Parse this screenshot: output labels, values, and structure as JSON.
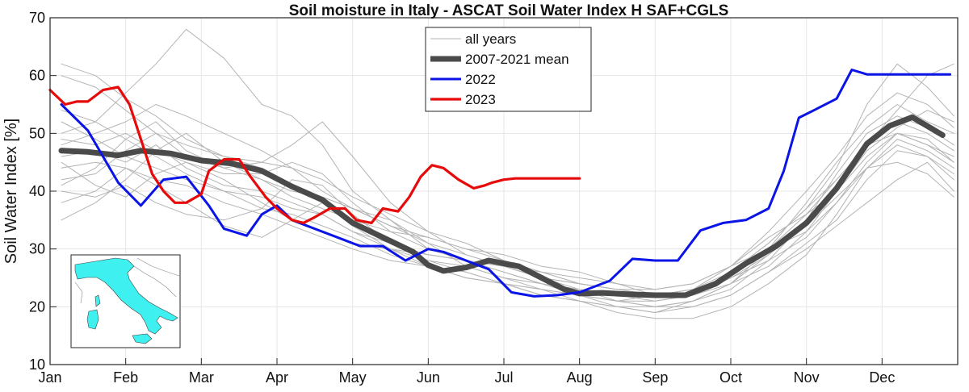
{
  "chart_data": {
    "type": "line",
    "title": "Soil moisture in Italy - ASCAT Soil Water Index H SAF+CGLS",
    "xlabel": "",
    "ylabel": "Soil Water Index [%]",
    "ylim": [
      10,
      70
    ],
    "yticks": [
      10,
      20,
      30,
      40,
      50,
      60,
      70
    ],
    "xlim": [
      0,
      12
    ],
    "month_labels": [
      "Jan",
      "Feb",
      "Mar",
      "Apr",
      "May",
      "Jun",
      "Jul",
      "Aug",
      "Sep",
      "Oct",
      "Nov",
      "Dec"
    ],
    "grid": true,
    "legend_position": "top-center",
    "legend": [
      "all years",
      "2007-2021 mean",
      "2022",
      "2023"
    ],
    "colors": {
      "all_years": "#b4b4b4",
      "mean": "#4a4a4a",
      "y2022": "#0a14e6",
      "y2023": "#e60a0a",
      "map_land": "#3ff0f0"
    },
    "inset_map": "italy-location-map",
    "series": [
      {
        "name": "2007-2021 mean",
        "x": [
          0.15,
          0.5,
          0.9,
          1.2,
          1.6,
          2.0,
          2.4,
          2.8,
          3.2,
          3.6,
          4.0,
          4.4,
          4.8,
          5.0,
          5.2,
          5.5,
          5.8,
          6.2,
          6.5,
          6.8,
          7.0,
          7.3,
          7.6,
          8.0,
          8.4,
          8.8,
          9.2,
          9.6,
          10.0,
          10.4,
          10.8,
          11.1,
          11.4,
          11.8
        ],
        "y": [
          47,
          46.8,
          46.2,
          47,
          46.5,
          45.3,
          44.8,
          43.5,
          40.8,
          38.5,
          34.5,
          32,
          29.5,
          27.2,
          26.2,
          26.8,
          28,
          27,
          25,
          23,
          22.3,
          22.4,
          22.2,
          22,
          22,
          24,
          27.5,
          30.5,
          34.5,
          40.5,
          48.2,
          51.3,
          52.8,
          49.7
        ]
      },
      {
        "name": "2022",
        "x": [
          0.15,
          0.5,
          0.9,
          1.2,
          1.5,
          1.8,
          2.1,
          2.3,
          2.6,
          2.8,
          3.0,
          3.2,
          3.5,
          3.8,
          4.1,
          4.4,
          4.7,
          5.0,
          5.2,
          5.4,
          5.6,
          5.8,
          6.1,
          6.4,
          6.7,
          7.0,
          7.4,
          7.7,
          8.0,
          8.3,
          8.6,
          8.9,
          9.2,
          9.5,
          9.7,
          9.9,
          10.1,
          10.4,
          10.6,
          10.8,
          11.0,
          11.4,
          11.6,
          11.9
        ],
        "y": [
          55,
          50.5,
          41.5,
          37.5,
          42,
          42.5,
          37.5,
          33.5,
          32.3,
          36,
          37.5,
          35,
          33.5,
          32,
          30.5,
          30.5,
          28,
          30,
          29.5,
          28.5,
          27.5,
          26.5,
          22.5,
          21.8,
          22,
          22.5,
          24.5,
          28.3,
          28,
          28,
          33.2,
          34.5,
          35,
          37,
          43.5,
          52.7,
          54,
          56,
          61,
          60.2,
          60.2,
          60.2,
          60.2,
          60.2
        ]
      },
      {
        "name": "2023",
        "x": [
          0.0,
          0.2,
          0.35,
          0.5,
          0.7,
          0.9,
          1.05,
          1.2,
          1.35,
          1.5,
          1.65,
          1.8,
          2.0,
          2.1,
          2.3,
          2.5,
          2.65,
          2.85,
          3.0,
          3.2,
          3.35,
          3.5,
          3.7,
          3.9,
          4.05,
          4.25,
          4.4,
          4.6,
          4.75,
          4.9,
          5.05,
          5.2,
          5.4,
          5.6,
          5.75,
          5.85,
          6.0,
          6.15,
          6.3,
          6.45,
          6.6,
          6.7,
          6.85,
          7.0
        ],
        "y": [
          57.5,
          55,
          55.5,
          55.5,
          57.5,
          58,
          55,
          49,
          43,
          40,
          38,
          38,
          39.5,
          43.5,
          45.5,
          45.5,
          42.5,
          39,
          37,
          35,
          34.5,
          35.5,
          37,
          37,
          35,
          34.5,
          37,
          36.5,
          39,
          42.5,
          44.5,
          44,
          42,
          40.5,
          41,
          41.5,
          42,
          42.2,
          42.2,
          42.2,
          42.2,
          42.2,
          42.2,
          42.2
        ]
      }
    ],
    "all_years_series": [
      {
        "x": [
          0.15,
          0.6,
          1.0,
          1.4,
          1.8,
          2.3,
          2.8,
          3.2,
          3.6,
          4.0,
          4.5,
          5.0,
          5.5,
          6.0,
          6.5,
          7.0,
          7.5,
          8.0,
          8.5,
          9.0,
          9.5,
          10.0,
          10.4,
          10.8,
          11.2,
          11.6,
          11.95
        ],
        "y": [
          44,
          45,
          44,
          42,
          41,
          38,
          36,
          34,
          32,
          30,
          28,
          27,
          26,
          24,
          22,
          21,
          20,
          20,
          21,
          24,
          30,
          38,
          45,
          51,
          55,
          52,
          50
        ]
      },
      {
        "x": [
          0.15,
          0.6,
          1.0,
          1.4,
          1.8,
          2.3,
          2.8,
          3.2,
          3.6,
          4.0,
          4.5,
          5.0,
          5.5,
          6.0,
          6.5,
          7.0,
          7.5,
          8.0,
          8.5,
          9.0,
          9.5,
          10.0,
          10.4,
          10.8,
          11.2,
          11.6,
          11.95
        ],
        "y": [
          50,
          52,
          57,
          62,
          68,
          63,
          55,
          53,
          48,
          40,
          35,
          30,
          28,
          26,
          24,
          23,
          22,
          21,
          22,
          26,
          31,
          37,
          44,
          55,
          62,
          58,
          53
        ]
      },
      {
        "x": [
          0.15,
          0.6,
          1.0,
          1.4,
          1.8,
          2.3,
          2.8,
          3.2,
          3.6,
          4.0,
          4.5,
          5.0,
          5.5,
          6.0,
          6.5,
          7.0,
          7.5,
          8.0,
          8.5,
          9.0,
          9.5,
          10.0,
          10.4,
          10.8,
          11.2,
          11.6,
          11.95
        ],
        "y": [
          40,
          39,
          41,
          38,
          36,
          35,
          37,
          42,
          41,
          36,
          31,
          28,
          26,
          24,
          23,
          22,
          21,
          22,
          23,
          27,
          33,
          40,
          46,
          53,
          57,
          55,
          51
        ]
      },
      {
        "x": [
          0.15,
          0.6,
          1.0,
          1.4,
          1.8,
          2.3,
          2.8,
          3.2,
          3.6,
          4.0,
          4.5,
          5.0,
          5.5,
          6.0,
          6.5,
          7.0,
          7.5,
          8.0,
          8.5,
          9.0,
          9.5,
          10.0,
          10.4,
          10.8,
          11.2,
          11.6,
          11.95
        ],
        "y": [
          35,
          38,
          42,
          47,
          50,
          45,
          42,
          40,
          39,
          37,
          34,
          32,
          30,
          28,
          26,
          24,
          23,
          22,
          22,
          25,
          29,
          34,
          41,
          48,
          52,
          50,
          47
        ]
      },
      {
        "x": [
          0.15,
          0.6,
          1.0,
          1.4,
          1.8,
          2.3,
          2.8,
          3.2,
          3.6,
          4.0,
          4.5,
          5.0,
          5.5,
          6.0,
          6.5,
          7.0,
          7.5,
          8.0,
          8.5,
          9.0,
          9.5,
          10.0,
          10.4,
          10.8,
          11.2,
          11.6,
          11.95
        ],
        "y": [
          60,
          58,
          54,
          50,
          46,
          44,
          45,
          48,
          52,
          46,
          38,
          33,
          29,
          27,
          25,
          24,
          23,
          23,
          24,
          27,
          32,
          36,
          40,
          46,
          50,
          48,
          45
        ]
      },
      {
        "x": [
          0.15,
          0.6,
          1.0,
          1.4,
          1.8,
          2.3,
          2.8,
          3.2,
          3.6,
          4.0,
          4.5,
          5.0,
          5.5,
          6.0,
          6.5,
          7.0,
          7.5,
          8.0,
          8.5,
          9.0,
          9.5,
          10.0,
          10.4,
          10.8,
          11.2,
          11.6,
          11.95
        ],
        "y": [
          46,
          47,
          45,
          48,
          44,
          41,
          40,
          38,
          36,
          33,
          31,
          29,
          28,
          27,
          25,
          23,
          21,
          20,
          20,
          22,
          26,
          31,
          35,
          42,
          47,
          46,
          43
        ]
      },
      {
        "x": [
          0.15,
          0.6,
          1.0,
          1.4,
          1.8,
          2.3,
          2.8,
          3.2,
          3.6,
          4.0,
          4.5,
          5.0,
          5.5,
          6.0,
          6.5,
          7.0,
          7.5,
          8.0,
          8.5,
          9.0,
          9.5,
          10.0,
          10.4,
          10.8,
          11.2,
          11.6,
          11.95
        ],
        "y": [
          42,
          43,
          47,
          50,
          48,
          46,
          44,
          41,
          39,
          37,
          35,
          31,
          27,
          25,
          23,
          21,
          19,
          18,
          18,
          20,
          24,
          29,
          36,
          44,
          49,
          47,
          44
        ]
      },
      {
        "x": [
          0.15,
          0.6,
          1.0,
          1.4,
          1.8,
          2.3,
          2.8,
          3.2,
          3.6,
          4.0,
          4.5,
          5.0,
          5.5,
          6.0,
          6.5,
          7.0,
          7.5,
          8.0,
          8.5,
          9.0,
          9.5,
          10.0,
          10.4,
          10.8,
          11.2,
          11.6,
          11.95
        ],
        "y": [
          54,
          52,
          49,
          52,
          47,
          44,
          42,
          39,
          37,
          35,
          33,
          32,
          30,
          29,
          27,
          26,
          24,
          23,
          24,
          27,
          30,
          33,
          38,
          44,
          48,
          46,
          42
        ]
      },
      {
        "x": [
          0.15,
          0.6,
          1.0,
          1.4,
          1.8,
          2.3,
          2.8,
          3.2,
          3.6,
          4.0,
          4.5,
          5.0,
          5.5,
          6.0,
          6.5,
          7.0,
          7.5,
          8.0,
          8.5,
          9.0,
          9.5,
          10.0,
          10.4,
          10.8,
          11.2,
          11.6,
          11.95
        ],
        "y": [
          38,
          40,
          44,
          41,
          38,
          34,
          32,
          35,
          38,
          34,
          30,
          27,
          25,
          24,
          22,
          21,
          20,
          19,
          21,
          23,
          28,
          35,
          43,
          50,
          53,
          51,
          48
        ]
      },
      {
        "x": [
          0.15,
          0.6,
          1.0,
          1.4,
          1.8,
          2.3,
          2.8,
          3.2,
          3.6,
          4.0,
          4.5,
          5.0,
          5.5,
          6.0,
          6.5,
          7.0,
          7.5,
          8.0,
          8.5,
          9.0,
          9.5,
          10.0,
          10.4,
          10.8,
          11.2,
          11.6,
          11.95
        ],
        "y": [
          48,
          50,
          52,
          55,
          53,
          50,
          47,
          44,
          40,
          37,
          34,
          31,
          29,
          27,
          26,
          25,
          24,
          22,
          22,
          24,
          27,
          33,
          40,
          47,
          51,
          54,
          52
        ]
      },
      {
        "x": [
          0.15,
          0.6,
          1.0,
          1.4,
          1.8,
          2.3,
          2.8,
          3.2,
          3.6,
          4.0,
          4.5,
          5.0,
          5.5,
          6.0,
          6.5,
          7.0,
          7.5,
          8.0,
          8.5,
          9.0,
          9.5,
          10.0,
          10.4,
          10.8,
          11.2,
          11.6,
          11.95
        ],
        "y": [
          52,
          49,
          46,
          44,
          42,
          40,
          39,
          37,
          36,
          33,
          30,
          28,
          27,
          25,
          24,
          22,
          21,
          21,
          22,
          26,
          31,
          37,
          42,
          48,
          54,
          60,
          62
        ]
      },
      {
        "x": [
          0.15,
          0.6,
          1.0,
          1.4,
          1.8,
          2.3,
          2.8,
          3.2,
          3.6,
          4.0,
          4.5,
          5.0,
          5.5,
          6.0,
          6.5,
          7.0,
          7.5,
          8.0,
          8.5,
          9.0,
          9.5,
          10.0,
          10.4,
          10.8,
          11.2,
          11.6,
          11.95
        ],
        "y": [
          45,
          41,
          39,
          43,
          45,
          42,
          38,
          35,
          33,
          31,
          30,
          29,
          28,
          26,
          24,
          22,
          20,
          19,
          20,
          22,
          26,
          30,
          34,
          38,
          42,
          45,
          40
        ]
      },
      {
        "x": [
          0.15,
          0.6,
          1.0,
          1.4,
          1.8,
          2.3,
          2.8,
          3.2,
          3.6,
          4.0,
          4.5,
          5.0,
          5.5,
          6.0,
          6.5,
          7.0,
          7.5,
          8.0,
          8.5,
          9.0,
          9.5,
          10.0,
          10.4,
          10.8,
          11.2,
          11.6,
          11.95
        ],
        "y": [
          62,
          60,
          56,
          53,
          49,
          46,
          45,
          44,
          42,
          39,
          36,
          33,
          31,
          28,
          26,
          24,
          23,
          22,
          23,
          25,
          28,
          32,
          38,
          45,
          50,
          48,
          46
        ]
      },
      {
        "x": [
          0.15,
          0.6,
          1.0,
          1.4,
          1.8,
          2.3,
          2.8,
          3.2,
          3.6,
          4.0,
          4.5,
          5.0,
          5.5,
          6.0,
          6.5,
          7.0,
          7.5,
          8.0,
          8.5,
          9.0,
          9.5,
          10.0,
          10.4,
          10.8,
          11.2,
          11.6,
          11.95
        ],
        "y": [
          41,
          44,
          49,
          46,
          43,
          40,
          37,
          36,
          34,
          32,
          29,
          27,
          25,
          24,
          23,
          22,
          21,
          20,
          21,
          24,
          29,
          34,
          39,
          44,
          45,
          43,
          39
        ]
      },
      {
        "x": [
          0.15,
          0.6,
          1.0,
          1.4,
          1.8,
          2.3,
          2.8,
          3.2,
          3.6,
          4.0,
          4.5,
          5.0,
          5.5,
          6.0,
          6.5,
          7.0,
          7.5,
          8.0,
          8.5,
          9.0,
          9.5,
          10.0,
          10.4,
          10.8,
          11.2,
          11.6,
          11.95
        ],
        "y": [
          49,
          48,
          50,
          47,
          45,
          43,
          43,
          45,
          43,
          38,
          33,
          30,
          28,
          27,
          25,
          24,
          23,
          22,
          23,
          26,
          30,
          36,
          42,
          48,
          50,
          49,
          45
        ]
      }
    ]
  }
}
